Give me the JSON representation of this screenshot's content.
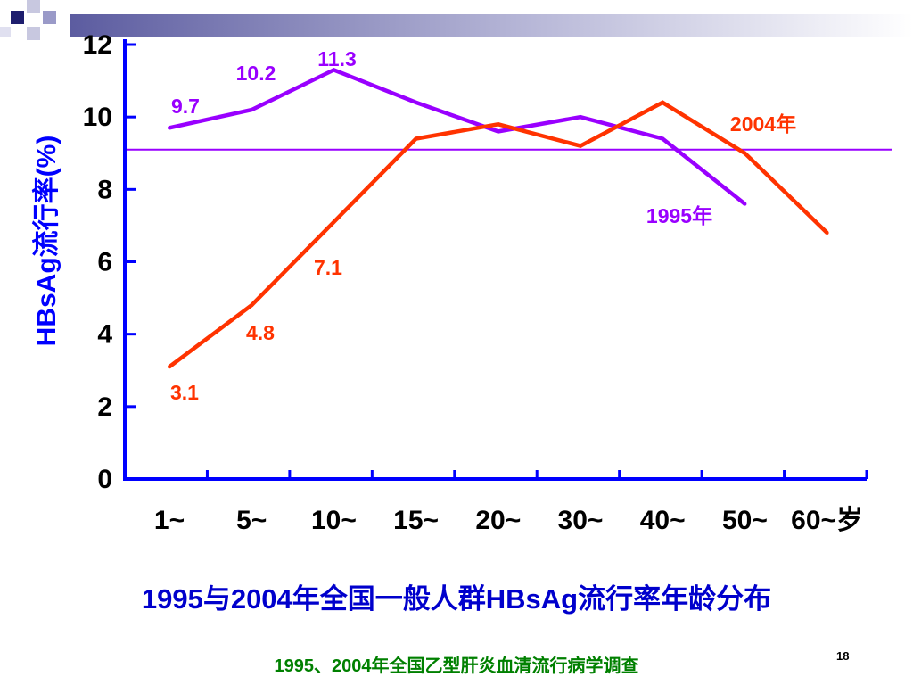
{
  "colors": {
    "axis": "#0000ff",
    "series_1995": "#9900ff",
    "series_2004": "#ff3300",
    "title": "#0000cc",
    "source": "#008000",
    "reference_line": "#9900ff"
  },
  "title": "1995与2004年全国一般人群HBsAg流行率年龄分布",
  "source_note": "1995、2004年全国乙型肝炎血清流行病学调查",
  "page_number": "18",
  "chart_data": {
    "type": "line",
    "title": "1995与2004年全国一般人群HBsAg流行率年龄分布",
    "xlabel": "",
    "ylabel": "HBsAg流行率(%)",
    "ylim": [
      0,
      12
    ],
    "yticks": [
      "0",
      "2",
      "4",
      "6",
      "8",
      "10",
      "12"
    ],
    "categories": [
      "1~",
      "5~",
      "10~",
      "15~",
      "20~",
      "30~",
      "40~",
      "50~",
      "60~岁"
    ],
    "grid": false,
    "reference_line": 9.1,
    "series": [
      {
        "name": "1995年",
        "values": [
          9.7,
          10.2,
          11.3,
          10.4,
          9.6,
          10.0,
          9.4,
          7.6,
          null
        ],
        "data_labels": [
          "9.7",
          "10.2",
          "11.3",
          null,
          null,
          null,
          null,
          null,
          null
        ]
      },
      {
        "name": "2004年",
        "values": [
          3.1,
          4.8,
          7.1,
          9.4,
          9.8,
          9.2,
          10.4,
          9.0,
          6.8
        ],
        "data_labels": [
          "3.1",
          "4.8",
          "7.1",
          null,
          null,
          null,
          null,
          null,
          null
        ]
      }
    ]
  }
}
